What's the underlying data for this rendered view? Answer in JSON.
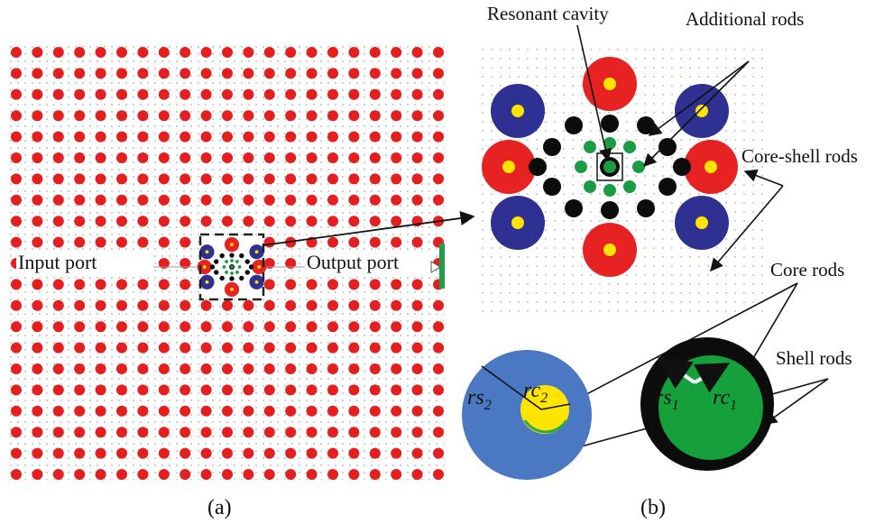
{
  "panel_a": {
    "caption": "(a)",
    "input_label": "Input port",
    "output_label": "Output port"
  },
  "panel_b": {
    "caption": "(b)",
    "labels": {
      "resonant_cavity": "Resonant cavity",
      "additional_rods": "Additional rods",
      "core_shell_rods": "Core-shell rods",
      "core_rods": "Core rods",
      "shell_rods": "Shell rods"
    },
    "detail_left": {
      "outer_radius_label": "rs",
      "outer_sub": "2",
      "inner_radius_label": "rc",
      "inner_sub": "2"
    },
    "detail_right": {
      "outer_radius_label": "rs",
      "outer_sub": "1",
      "inner_radius_label": "rc",
      "inner_sub": "1"
    }
  },
  "colors": {
    "lattice_rod": "#e41f1f",
    "red_shell": "#e62222",
    "blue_shell": "#2e3192",
    "core_yellow": "#ffe400",
    "black_rod": "#0c0c0c",
    "green_rod": "#1a9c45",
    "light_blue_shell": "#4a78c2",
    "dark_green_core": "#15a03c"
  }
}
